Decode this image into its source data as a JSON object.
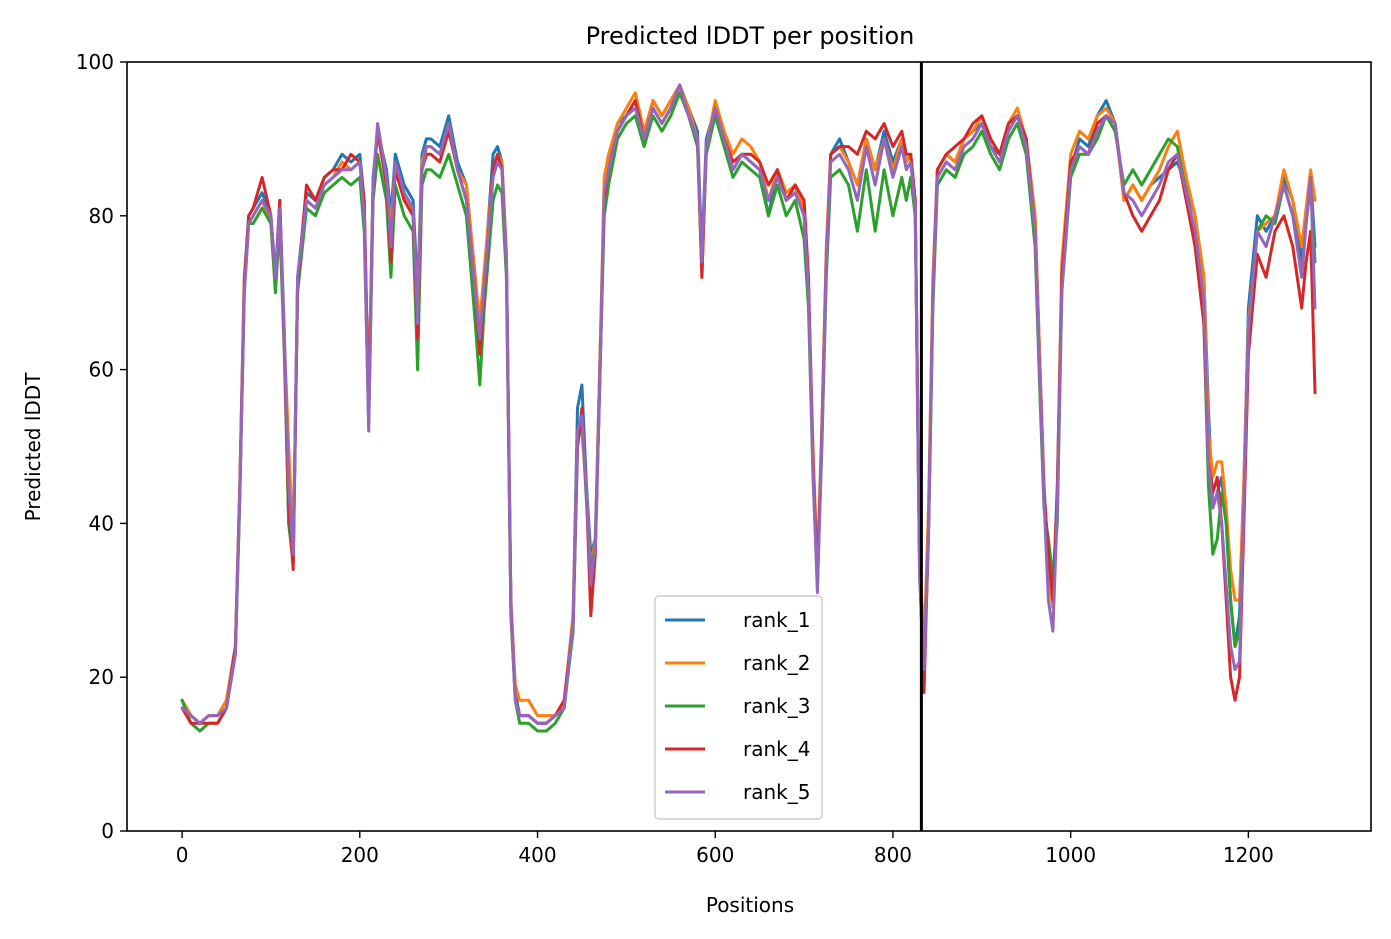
{
  "chart_data": {
    "type": "line",
    "title": "Predicted lDDT per position",
    "xlabel": "Positions",
    "ylabel": "Predicted lDDT",
    "xlim": [
      -62,
      1338
    ],
    "ylim": [
      0,
      100
    ],
    "xticks": [
      0,
      200,
      400,
      600,
      800,
      1000,
      1200
    ],
    "yticks": [
      0,
      20,
      40,
      60,
      80,
      100
    ],
    "legend_position": "lower-center",
    "grid": false,
    "vline": {
      "x": 832,
      "color": "#000000"
    },
    "x": [
      0,
      10,
      20,
      30,
      40,
      50,
      60,
      65,
      70,
      75,
      80,
      90,
      100,
      105,
      110,
      115,
      120,
      125,
      130,
      140,
      150,
      160,
      170,
      180,
      190,
      200,
      205,
      210,
      215,
      220,
      230,
      235,
      240,
      250,
      260,
      265,
      270,
      275,
      280,
      290,
      300,
      310,
      320,
      330,
      335,
      340,
      350,
      355,
      360,
      365,
      370,
      375,
      380,
      390,
      400,
      410,
      420,
      430,
      440,
      445,
      450,
      455,
      460,
      465,
      470,
      475,
      480,
      490,
      500,
      510,
      520,
      530,
      540,
      550,
      560,
      570,
      580,
      585,
      590,
      600,
      610,
      620,
      630,
      640,
      650,
      660,
      670,
      680,
      690,
      700,
      705,
      710,
      715,
      720,
      725,
      730,
      740,
      750,
      760,
      770,
      780,
      790,
      800,
      810,
      815,
      820,
      825,
      830,
      835,
      840,
      845,
      850,
      860,
      870,
      880,
      890,
      900,
      910,
      920,
      930,
      940,
      950,
      960,
      965,
      970,
      975,
      980,
      985,
      990,
      1000,
      1010,
      1020,
      1030,
      1040,
      1050,
      1060,
      1070,
      1080,
      1090,
      1100,
      1110,
      1120,
      1130,
      1140,
      1150,
      1155,
      1160,
      1165,
      1170,
      1175,
      1180,
      1185,
      1190,
      1195,
      1200,
      1210,
      1220,
      1230,
      1240,
      1250,
      1260,
      1265,
      1270,
      1275
    ],
    "series": [
      {
        "name": "rank_1",
        "color": "#1f77b4",
        "values": [
          17,
          15,
          14,
          15,
          15,
          17,
          24,
          45,
          72,
          80,
          81,
          83,
          80,
          72,
          82,
          65,
          40,
          35,
          72,
          83,
          82,
          85,
          86,
          88,
          87,
          88,
          82,
          55,
          85,
          91,
          86,
          80,
          88,
          84,
          82,
          70,
          88,
          90,
          90,
          89,
          93,
          87,
          84,
          72,
          64,
          72,
          88,
          89,
          87,
          75,
          30,
          18,
          15,
          15,
          14,
          14,
          15,
          16,
          28,
          55,
          58,
          45,
          36,
          38,
          60,
          82,
          86,
          92,
          93,
          95,
          90,
          95,
          93,
          95,
          97,
          94,
          91,
          75,
          90,
          94,
          90,
          86,
          88,
          87,
          86,
          80,
          86,
          82,
          84,
          80,
          70,
          48,
          33,
          52,
          75,
          88,
          90,
          87,
          84,
          90,
          86,
          91,
          87,
          90,
          87,
          88,
          82,
          35,
          22,
          40,
          70,
          86,
          88,
          87,
          90,
          91,
          92,
          89,
          88,
          92,
          93,
          90,
          80,
          62,
          45,
          35,
          30,
          45,
          72,
          86,
          90,
          89,
          93,
          95,
          92,
          82,
          84,
          82,
          84,
          85,
          86,
          87,
          84,
          80,
          72,
          55,
          42,
          44,
          46,
          40,
          30,
          24,
          28,
          45,
          68,
          80,
          78,
          80,
          85,
          82,
          74,
          80,
          85,
          76
        ]
      },
      {
        "name": "rank_2",
        "color": "#ff7f0e",
        "values": [
          17,
          15,
          14,
          15,
          15,
          17,
          24,
          45,
          72,
          79,
          80,
          82,
          79,
          71,
          80,
          64,
          50,
          37,
          71,
          82,
          81,
          84,
          85,
          87,
          86,
          87,
          81,
          56,
          84,
          91,
          85,
          78,
          87,
          83,
          80,
          68,
          87,
          89,
          89,
          88,
          92,
          86,
          84,
          72,
          66,
          73,
          86,
          88,
          87,
          75,
          30,
          19,
          17,
          17,
          15,
          15,
          15,
          17,
          28,
          52,
          52,
          44,
          34,
          38,
          60,
          85,
          88,
          92,
          94,
          96,
          91,
          95,
          93,
          95,
          97,
          94,
          90,
          72,
          89,
          95,
          91,
          88,
          90,
          89,
          87,
          82,
          86,
          83,
          84,
          81,
          70,
          50,
          34,
          53,
          76,
          88,
          89,
          87,
          84,
          90,
          86,
          90,
          86,
          90,
          87,
          88,
          82,
          36,
          24,
          42,
          72,
          86,
          88,
          87,
          90,
          91,
          93,
          90,
          88,
          92,
          94,
          90,
          80,
          62,
          45,
          33,
          29,
          44,
          74,
          88,
          91,
          90,
          93,
          94,
          92,
          82,
          84,
          82,
          84,
          86,
          89,
          91,
          85,
          80,
          72,
          52,
          46,
          48,
          48,
          42,
          34,
          30,
          30,
          46,
          66,
          78,
          79,
          80,
          86,
          82,
          76,
          81,
          86,
          82
        ]
      },
      {
        "name": "rank_3",
        "color": "#2ca02c",
        "values": [
          17,
          14,
          13,
          14,
          14,
          16,
          23,
          43,
          70,
          79,
          79,
          81,
          79,
          70,
          79,
          62,
          40,
          35,
          70,
          81,
          80,
          83,
          84,
          85,
          84,
          85,
          78,
          53,
          82,
          88,
          82,
          72,
          84,
          80,
          78,
          60,
          84,
          86,
          86,
          85,
          88,
          84,
          80,
          66,
          58,
          68,
          82,
          84,
          83,
          72,
          28,
          17,
          14,
          14,
          13,
          13,
          14,
          16,
          26,
          50,
          54,
          43,
          34,
          37,
          58,
          80,
          84,
          90,
          92,
          93,
          89,
          93,
          91,
          93,
          96,
          93,
          89,
          73,
          88,
          93,
          89,
          85,
          87,
          86,
          85,
          80,
          84,
          80,
          82,
          77,
          68,
          46,
          32,
          50,
          72,
          85,
          86,
          84,
          78,
          86,
          78,
          86,
          80,
          85,
          82,
          85,
          80,
          34,
          21,
          38,
          68,
          84,
          86,
          85,
          88,
          89,
          91,
          88,
          86,
          90,
          92,
          88,
          76,
          58,
          42,
          38,
          33,
          40,
          70,
          85,
          88,
          88,
          90,
          93,
          91,
          84,
          86,
          84,
          86,
          88,
          90,
          89,
          83,
          76,
          66,
          45,
          36,
          38,
          44,
          40,
          30,
          24,
          26,
          42,
          65,
          78,
          80,
          79,
          84,
          80,
          72,
          79,
          84,
          74
        ]
      },
      {
        "name": "rank_4",
        "color": "#d62728",
        "values": [
          16,
          14,
          14,
          14,
          14,
          16,
          24,
          44,
          71,
          80,
          81,
          85,
          80,
          72,
          82,
          63,
          42,
          34,
          71,
          84,
          82,
          85,
          86,
          86,
          88,
          87,
          82,
          54,
          84,
          91,
          84,
          74,
          86,
          82,
          80,
          64,
          86,
          88,
          88,
          87,
          91,
          86,
          82,
          70,
          62,
          70,
          86,
          88,
          86,
          74,
          29,
          17,
          15,
          15,
          14,
          14,
          15,
          17,
          27,
          50,
          55,
          44,
          28,
          36,
          58,
          82,
          86,
          91,
          93,
          95,
          90,
          94,
          92,
          94,
          97,
          93,
          90,
          72,
          89,
          94,
          90,
          87,
          88,
          88,
          87,
          84,
          86,
          82,
          84,
          82,
          72,
          48,
          33,
          52,
          74,
          88,
          89,
          89,
          88,
          91,
          90,
          92,
          89,
          91,
          88,
          88,
          82,
          34,
          18,
          39,
          70,
          86,
          88,
          89,
          90,
          92,
          93,
          90,
          88,
          92,
          93,
          90,
          78,
          60,
          44,
          36,
          30,
          44,
          72,
          87,
          89,
          88,
          92,
          93,
          92,
          83,
          80,
          78,
          80,
          82,
          86,
          88,
          82,
          76,
          66,
          48,
          44,
          46,
          40,
          30,
          20,
          17,
          20,
          40,
          62,
          75,
          72,
          78,
          80,
          76,
          68,
          74,
          78,
          57
        ]
      },
      {
        "name": "rank_5",
        "color": "#9467bd",
        "values": [
          16,
          15,
          14,
          15,
          15,
          16,
          23,
          44,
          70,
          79,
          80,
          82,
          80,
          72,
          81,
          64,
          45,
          36,
          72,
          82,
          81,
          84,
          85,
          86,
          86,
          87,
          80,
          52,
          84,
          92,
          85,
          76,
          87,
          83,
          81,
          66,
          86,
          89,
          89,
          88,
          92,
          86,
          82,
          70,
          64,
          71,
          85,
          87,
          86,
          74,
          29,
          17,
          15,
          15,
          14,
          14,
          15,
          16,
          27,
          52,
          54,
          44,
          32,
          37,
          58,
          83,
          86,
          91,
          93,
          94,
          90,
          94,
          92,
          94,
          97,
          93,
          90,
          74,
          89,
          94,
          90,
          86,
          88,
          87,
          86,
          82,
          85,
          82,
          83,
          80,
          70,
          47,
          31,
          51,
          74,
          87,
          88,
          86,
          82,
          89,
          84,
          90,
          85,
          89,
          86,
          87,
          81,
          33,
          21,
          39,
          70,
          85,
          87,
          86,
          89,
          90,
          92,
          89,
          87,
          91,
          93,
          89,
          78,
          60,
          43,
          30,
          26,
          42,
          70,
          86,
          89,
          88,
          91,
          93,
          92,
          83,
          82,
          80,
          82,
          84,
          87,
          88,
          83,
          78,
          69,
          48,
          42,
          44,
          40,
          32,
          24,
          21,
          22,
          43,
          65,
          78,
          76,
          80,
          84,
          80,
          72,
          79,
          85,
          68
        ]
      }
    ]
  }
}
